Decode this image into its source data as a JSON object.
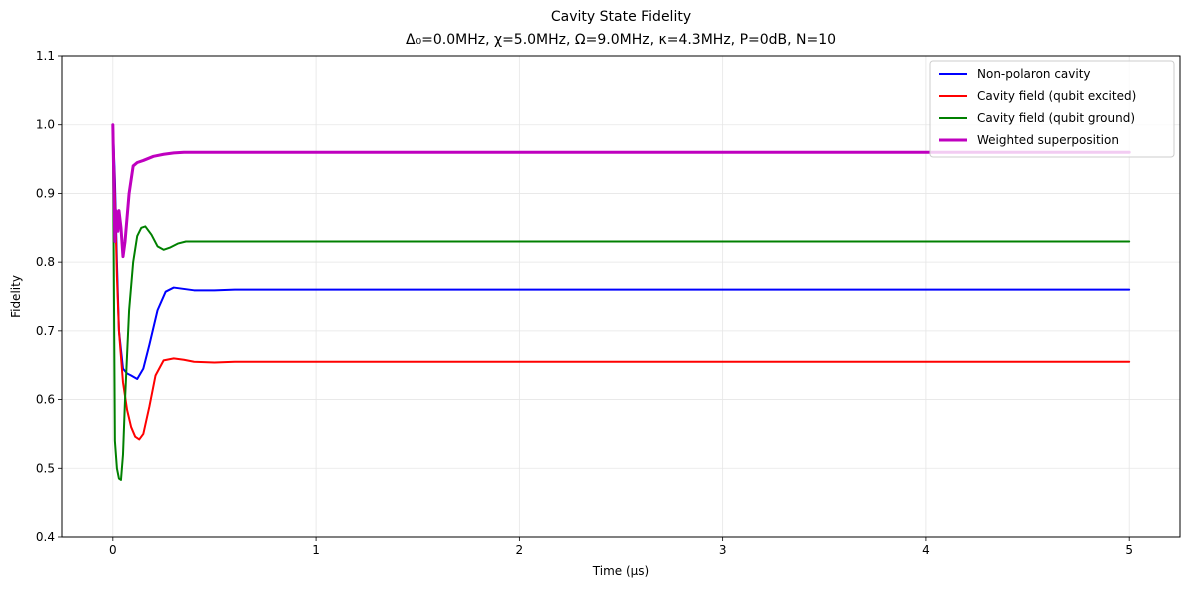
{
  "chart_data": {
    "type": "line",
    "title": "Cavity State Fidelity",
    "subtitle": "Δ₀=0.0MHz, χ=5.0MHz, Ω=9.0MHz, κ=4.3MHz, P=0dB, N=10",
    "xlabel": "Time (μs)",
    "ylabel": "Fidelity",
    "xlim": [
      -0.25,
      5.25
    ],
    "ylim": [
      0.4,
      1.1
    ],
    "xticks": [
      0,
      1,
      2,
      3,
      4,
      5
    ],
    "xtick_labels": [
      "0",
      "1",
      "2",
      "3",
      "4",
      "5"
    ],
    "yticks": [
      0.4,
      0.5,
      0.6,
      0.7,
      0.8,
      0.9,
      1.0,
      1.1
    ],
    "ytick_labels": [
      "0.4",
      "0.5",
      "0.6",
      "0.7",
      "0.8",
      "0.9",
      "1.0",
      "1.1"
    ],
    "grid": true,
    "legend_position": "top-right",
    "series": [
      {
        "name": "Non-polaron cavity",
        "color": "#0000ff",
        "linewidth": 2,
        "x": [
          0,
          0.01,
          0.02,
          0.03,
          0.05,
          0.07,
          0.09,
          0.12,
          0.15,
          0.18,
          0.22,
          0.26,
          0.3,
          0.35,
          0.4,
          0.5,
          0.6,
          0.8,
          1,
          2,
          3,
          4,
          5
        ],
        "y": [
          1.0,
          0.92,
          0.8,
          0.7,
          0.645,
          0.638,
          0.635,
          0.63,
          0.645,
          0.68,
          0.73,
          0.757,
          0.763,
          0.761,
          0.759,
          0.759,
          0.76,
          0.76,
          0.76,
          0.76,
          0.76,
          0.76,
          0.76
        ]
      },
      {
        "name": "Cavity field (qubit excited)",
        "color": "#ff0000",
        "linewidth": 2,
        "x": [
          0,
          0.01,
          0.02,
          0.03,
          0.05,
          0.07,
          0.09,
          0.11,
          0.13,
          0.15,
          0.18,
          0.21,
          0.25,
          0.3,
          0.35,
          0.4,
          0.5,
          0.6,
          0.8,
          1,
          2,
          3,
          4,
          5
        ],
        "y": [
          1.0,
          0.9,
          0.78,
          0.7,
          0.625,
          0.585,
          0.56,
          0.546,
          0.542,
          0.55,
          0.59,
          0.635,
          0.657,
          0.66,
          0.658,
          0.655,
          0.654,
          0.655,
          0.655,
          0.655,
          0.655,
          0.655,
          0.655,
          0.655
        ]
      },
      {
        "name": "Cavity field (qubit ground)",
        "color": "#008000",
        "linewidth": 2,
        "x": [
          0,
          0.01,
          0.02,
          0.03,
          0.04,
          0.05,
          0.06,
          0.08,
          0.1,
          0.12,
          0.14,
          0.16,
          0.19,
          0.22,
          0.25,
          0.28,
          0.32,
          0.36,
          0.4,
          0.5,
          0.6,
          0.8,
          1,
          2,
          3,
          4,
          5
        ],
        "y": [
          1.0,
          0.54,
          0.5,
          0.485,
          0.483,
          0.52,
          0.6,
          0.73,
          0.8,
          0.838,
          0.85,
          0.852,
          0.84,
          0.823,
          0.818,
          0.821,
          0.827,
          0.83,
          0.83,
          0.83,
          0.83,
          0.83,
          0.83,
          0.83,
          0.83,
          0.83,
          0.83
        ]
      },
      {
        "name": "Weighted superposition",
        "color": "#bf00bf",
        "linewidth": 3,
        "x": [
          0,
          0.01,
          0.015,
          0.02,
          0.025,
          0.03,
          0.04,
          0.05,
          0.06,
          0.08,
          0.1,
          0.12,
          0.15,
          0.2,
          0.25,
          0.3,
          0.35,
          0.4,
          0.5,
          0.6,
          0.8,
          1,
          2,
          3,
          4,
          5
        ],
        "y": [
          1.0,
          0.83,
          0.875,
          0.86,
          0.845,
          0.875,
          0.85,
          0.808,
          0.83,
          0.9,
          0.94,
          0.945,
          0.948,
          0.954,
          0.957,
          0.959,
          0.96,
          0.96,
          0.96,
          0.96,
          0.96,
          0.96,
          0.96,
          0.96,
          0.96,
          0.96
        ]
      }
    ]
  }
}
